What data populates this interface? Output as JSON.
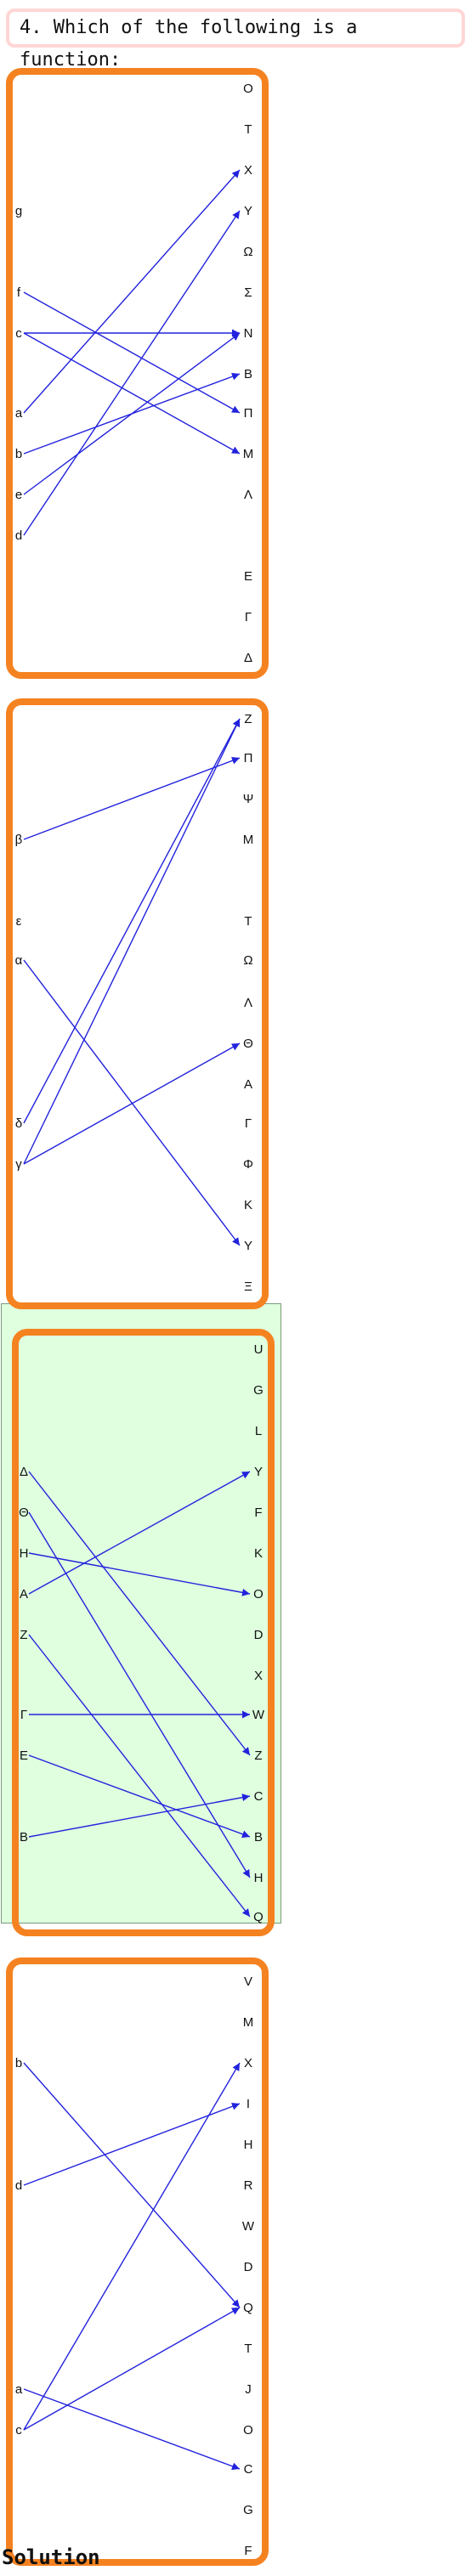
{
  "question": {
    "text": "4. Which of the following is a function:"
  },
  "solution_label": "Solution",
  "colors": {
    "card_border": "#f58220",
    "arrow": "#2222dd",
    "highlight_bg": "#dfffdf"
  },
  "diagrams": [
    {
      "id": "diagram-1",
      "highlighted": false,
      "left": [
        "g",
        "f",
        "c",
        "a",
        "b",
        "e",
        "d"
      ],
      "right": [
        "O",
        "T",
        "X",
        "Y",
        "Ω",
        "Σ",
        "N",
        "B",
        "Π",
        "M",
        "Λ",
        "E",
        "Γ",
        "Δ"
      ],
      "arrows": [
        [
          "f",
          "Π"
        ],
        [
          "c",
          "N"
        ],
        [
          "c",
          "M"
        ],
        [
          "a",
          "X"
        ],
        [
          "b",
          "B"
        ],
        [
          "e",
          "N"
        ],
        [
          "d",
          "Y"
        ]
      ]
    },
    {
      "id": "diagram-2",
      "highlighted": false,
      "left": [
        "β",
        "ε",
        "α",
        "δ",
        "γ"
      ],
      "right": [
        "Z",
        "Π",
        "Ψ",
        "M",
        "T",
        "Ω",
        "Λ",
        "Θ",
        "A",
        "Γ",
        "Φ",
        "K",
        "Y",
        "Ξ"
      ],
      "arrows": [
        [
          "β",
          "Π"
        ],
        [
          "α",
          "Y"
        ],
        [
          "δ",
          "Z"
        ],
        [
          "γ",
          "Z"
        ],
        [
          "γ",
          "Θ"
        ]
      ]
    },
    {
      "id": "diagram-3",
      "highlighted": true,
      "left": [
        "Δ",
        "Θ",
        "H",
        "A",
        "Z",
        "Γ",
        "E",
        "B"
      ],
      "right": [
        "U",
        "G",
        "L",
        "Y",
        "F",
        "K",
        "O",
        "D",
        "X",
        "W",
        "Z",
        "C",
        "B",
        "H",
        "Q"
      ],
      "arrows": [
        [
          "Δ",
          "Z"
        ],
        [
          "Θ",
          "H"
        ],
        [
          "H",
          "O"
        ],
        [
          "A",
          "Y"
        ],
        [
          "Z",
          "Q"
        ],
        [
          "Γ",
          "W"
        ],
        [
          "E",
          "B"
        ],
        [
          "B",
          "C"
        ]
      ]
    },
    {
      "id": "diagram-4",
      "highlighted": false,
      "left": [
        "b",
        "d",
        "a",
        "c"
      ],
      "right": [
        "V",
        "M",
        "X",
        "I",
        "H",
        "R",
        "W",
        "D",
        "Q",
        "T",
        "J",
        "O",
        "C",
        "G",
        "F"
      ],
      "arrows": [
        [
          "b",
          "Q"
        ],
        [
          "d",
          "I"
        ],
        [
          "a",
          "C"
        ],
        [
          "c",
          "X"
        ],
        [
          "c",
          "Q"
        ]
      ]
    }
  ]
}
